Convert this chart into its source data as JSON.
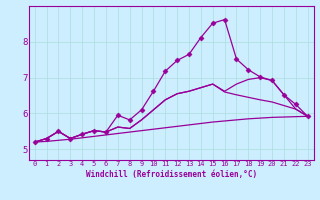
{
  "title": "",
  "xlabel": "Windchill (Refroidissement éolien,°C)",
  "bg_color": "#cceeff",
  "line_color": "#990099",
  "grid_color": "#aadddd",
  "x_ticks": [
    0,
    1,
    2,
    3,
    4,
    5,
    6,
    7,
    8,
    9,
    10,
    11,
    12,
    13,
    14,
    15,
    16,
    17,
    18,
    19,
    20,
    21,
    22,
    23
  ],
  "y_ticks": [
    5,
    6,
    7,
    8
  ],
  "ylim": [
    4.7,
    9.0
  ],
  "xlim": [
    -0.5,
    23.5
  ],
  "lines": [
    {
      "x": [
        0,
        1,
        2,
        3,
        4,
        5,
        6,
        7,
        8,
        9,
        10,
        11,
        12,
        13,
        14,
        15,
        16,
        17,
        18,
        19,
        20,
        21,
        22,
        23
      ],
      "y": [
        5.2,
        5.22,
        5.25,
        5.28,
        5.32,
        5.36,
        5.4,
        5.44,
        5.48,
        5.52,
        5.56,
        5.6,
        5.64,
        5.68,
        5.72,
        5.76,
        5.79,
        5.82,
        5.85,
        5.87,
        5.89,
        5.9,
        5.91,
        5.92
      ],
      "marker": null,
      "lw": 0.9
    },
    {
      "x": [
        0,
        1,
        2,
        3,
        4,
        5,
        6,
        7,
        8,
        9,
        10,
        11,
        12,
        13,
        14,
        15,
        16,
        17,
        18,
        19,
        20,
        21,
        22,
        23
      ],
      "y": [
        5.2,
        5.3,
        5.5,
        5.3,
        5.42,
        5.52,
        5.48,
        5.62,
        5.58,
        5.82,
        6.1,
        6.38,
        6.55,
        6.62,
        6.72,
        6.82,
        6.6,
        6.52,
        6.45,
        6.38,
        6.32,
        6.22,
        6.12,
        5.92
      ],
      "marker": null,
      "lw": 0.9
    },
    {
      "x": [
        0,
        1,
        2,
        3,
        4,
        5,
        6,
        7,
        8,
        9,
        10,
        11,
        12,
        13,
        14,
        15,
        16,
        17,
        18,
        19,
        20,
        21,
        22,
        23
      ],
      "y": [
        5.2,
        5.3,
        5.5,
        5.3,
        5.42,
        5.52,
        5.48,
        5.62,
        5.58,
        5.82,
        6.1,
        6.38,
        6.55,
        6.62,
        6.72,
        6.82,
        6.62,
        6.82,
        6.95,
        7.0,
        6.92,
        6.52,
        6.12,
        5.92
      ],
      "marker": null,
      "lw": 0.9
    },
    {
      "x": [
        0,
        1,
        2,
        3,
        4,
        5,
        6,
        7,
        8,
        9,
        10,
        11,
        12,
        13,
        14,
        15,
        16,
        17,
        18,
        19,
        20,
        21,
        22,
        23
      ],
      "y": [
        5.2,
        5.3,
        5.5,
        5.3,
        5.42,
        5.52,
        5.48,
        5.95,
        5.82,
        6.1,
        6.62,
        7.18,
        7.48,
        7.65,
        8.12,
        8.52,
        8.62,
        7.52,
        7.22,
        7.02,
        6.92,
        6.52,
        6.25,
        5.92
      ],
      "marker": "D",
      "markersize": 2.5,
      "lw": 0.9
    }
  ]
}
